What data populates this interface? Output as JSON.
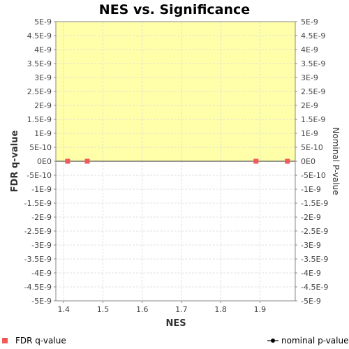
{
  "chart_data": {
    "type": "scatter",
    "title": "NES vs. Significance",
    "xlabel": "NES",
    "ylabel": "FDR q-value",
    "y2label": "Nominal P-value",
    "xlim": [
      1.38,
      1.99
    ],
    "ylim": [
      -5e-09,
      5e-09
    ],
    "y2lim": [
      -5e-09,
      5e-09
    ],
    "x_ticks": [
      "1.4",
      "1.5",
      "1.6",
      "1.7",
      "1.8",
      "1.9"
    ],
    "x_tick_values": [
      1.4,
      1.5,
      1.6,
      1.7,
      1.8,
      1.9
    ],
    "y_ticks": [
      "5E-9",
      "4.5E-9",
      "4E-9",
      "3.5E-9",
      "3E-9",
      "2.5E-9",
      "2E-9",
      "1.5E-9",
      "1E-9",
      "5E-10",
      "0E0",
      "-5E-10",
      "-1E-9",
      "-1.5E-9",
      "-2E-9",
      "-2.5E-9",
      "-3E-9",
      "-3.5E-9",
      "-4E-9",
      "-4.5E-9",
      "-5E-9"
    ],
    "y_tick_values": [
      5e-09,
      4.5e-09,
      4e-09,
      3.5e-09,
      3e-09,
      2.5e-09,
      2e-09,
      1.5e-09,
      1e-09,
      5e-10,
      0,
      -5e-10,
      -1e-09,
      -1.5e-09,
      -2e-09,
      -2.5e-09,
      -3e-09,
      -3.5e-09,
      -4e-09,
      -4.5e-09,
      -5e-09
    ],
    "y2_ticks": [
      "5E-9",
      "4.5E-9",
      "4E-9",
      "3.5E-9",
      "3E-9",
      "2.5E-9",
      "2E-9",
      "1.5E-9",
      "1E-9",
      "5E-10",
      "0E0",
      "-5E-10",
      "-1E-9",
      "-1.5E-9",
      "-2E-9",
      "-2.5E-9",
      "-3E-9",
      "-3.5E-9",
      "-4E-9",
      "-4.5E-9",
      "-5E-9"
    ],
    "series": [
      {
        "name": "FDR q-value",
        "marker": "square",
        "color": "#f25a5a",
        "points": [
          {
            "x": 1.41,
            "y": 0
          },
          {
            "x": 1.46,
            "y": 0
          },
          {
            "x": 1.89,
            "y": 0
          },
          {
            "x": 1.97,
            "y": 0
          }
        ]
      },
      {
        "name": "nominal p-value",
        "marker": "line-dot",
        "color": "#000000",
        "points": [
          {
            "x": 1.41,
            "y": 0
          },
          {
            "x": 1.46,
            "y": 0
          },
          {
            "x": 1.89,
            "y": 0
          },
          {
            "x": 1.97,
            "y": 0
          }
        ]
      }
    ],
    "highlight_band": {
      "from": 0,
      "to": 5e-09,
      "color": "#ffffaa"
    },
    "grid": true,
    "legend_position": "bottom"
  },
  "legend": {
    "fdr_label": "FDR q-value",
    "nominal_label": "nominal p-value"
  },
  "colors": {
    "fdr": "#f25a5a",
    "nominal": "#000000",
    "band": "#ffffaa",
    "grid": "#d8d8d8"
  }
}
